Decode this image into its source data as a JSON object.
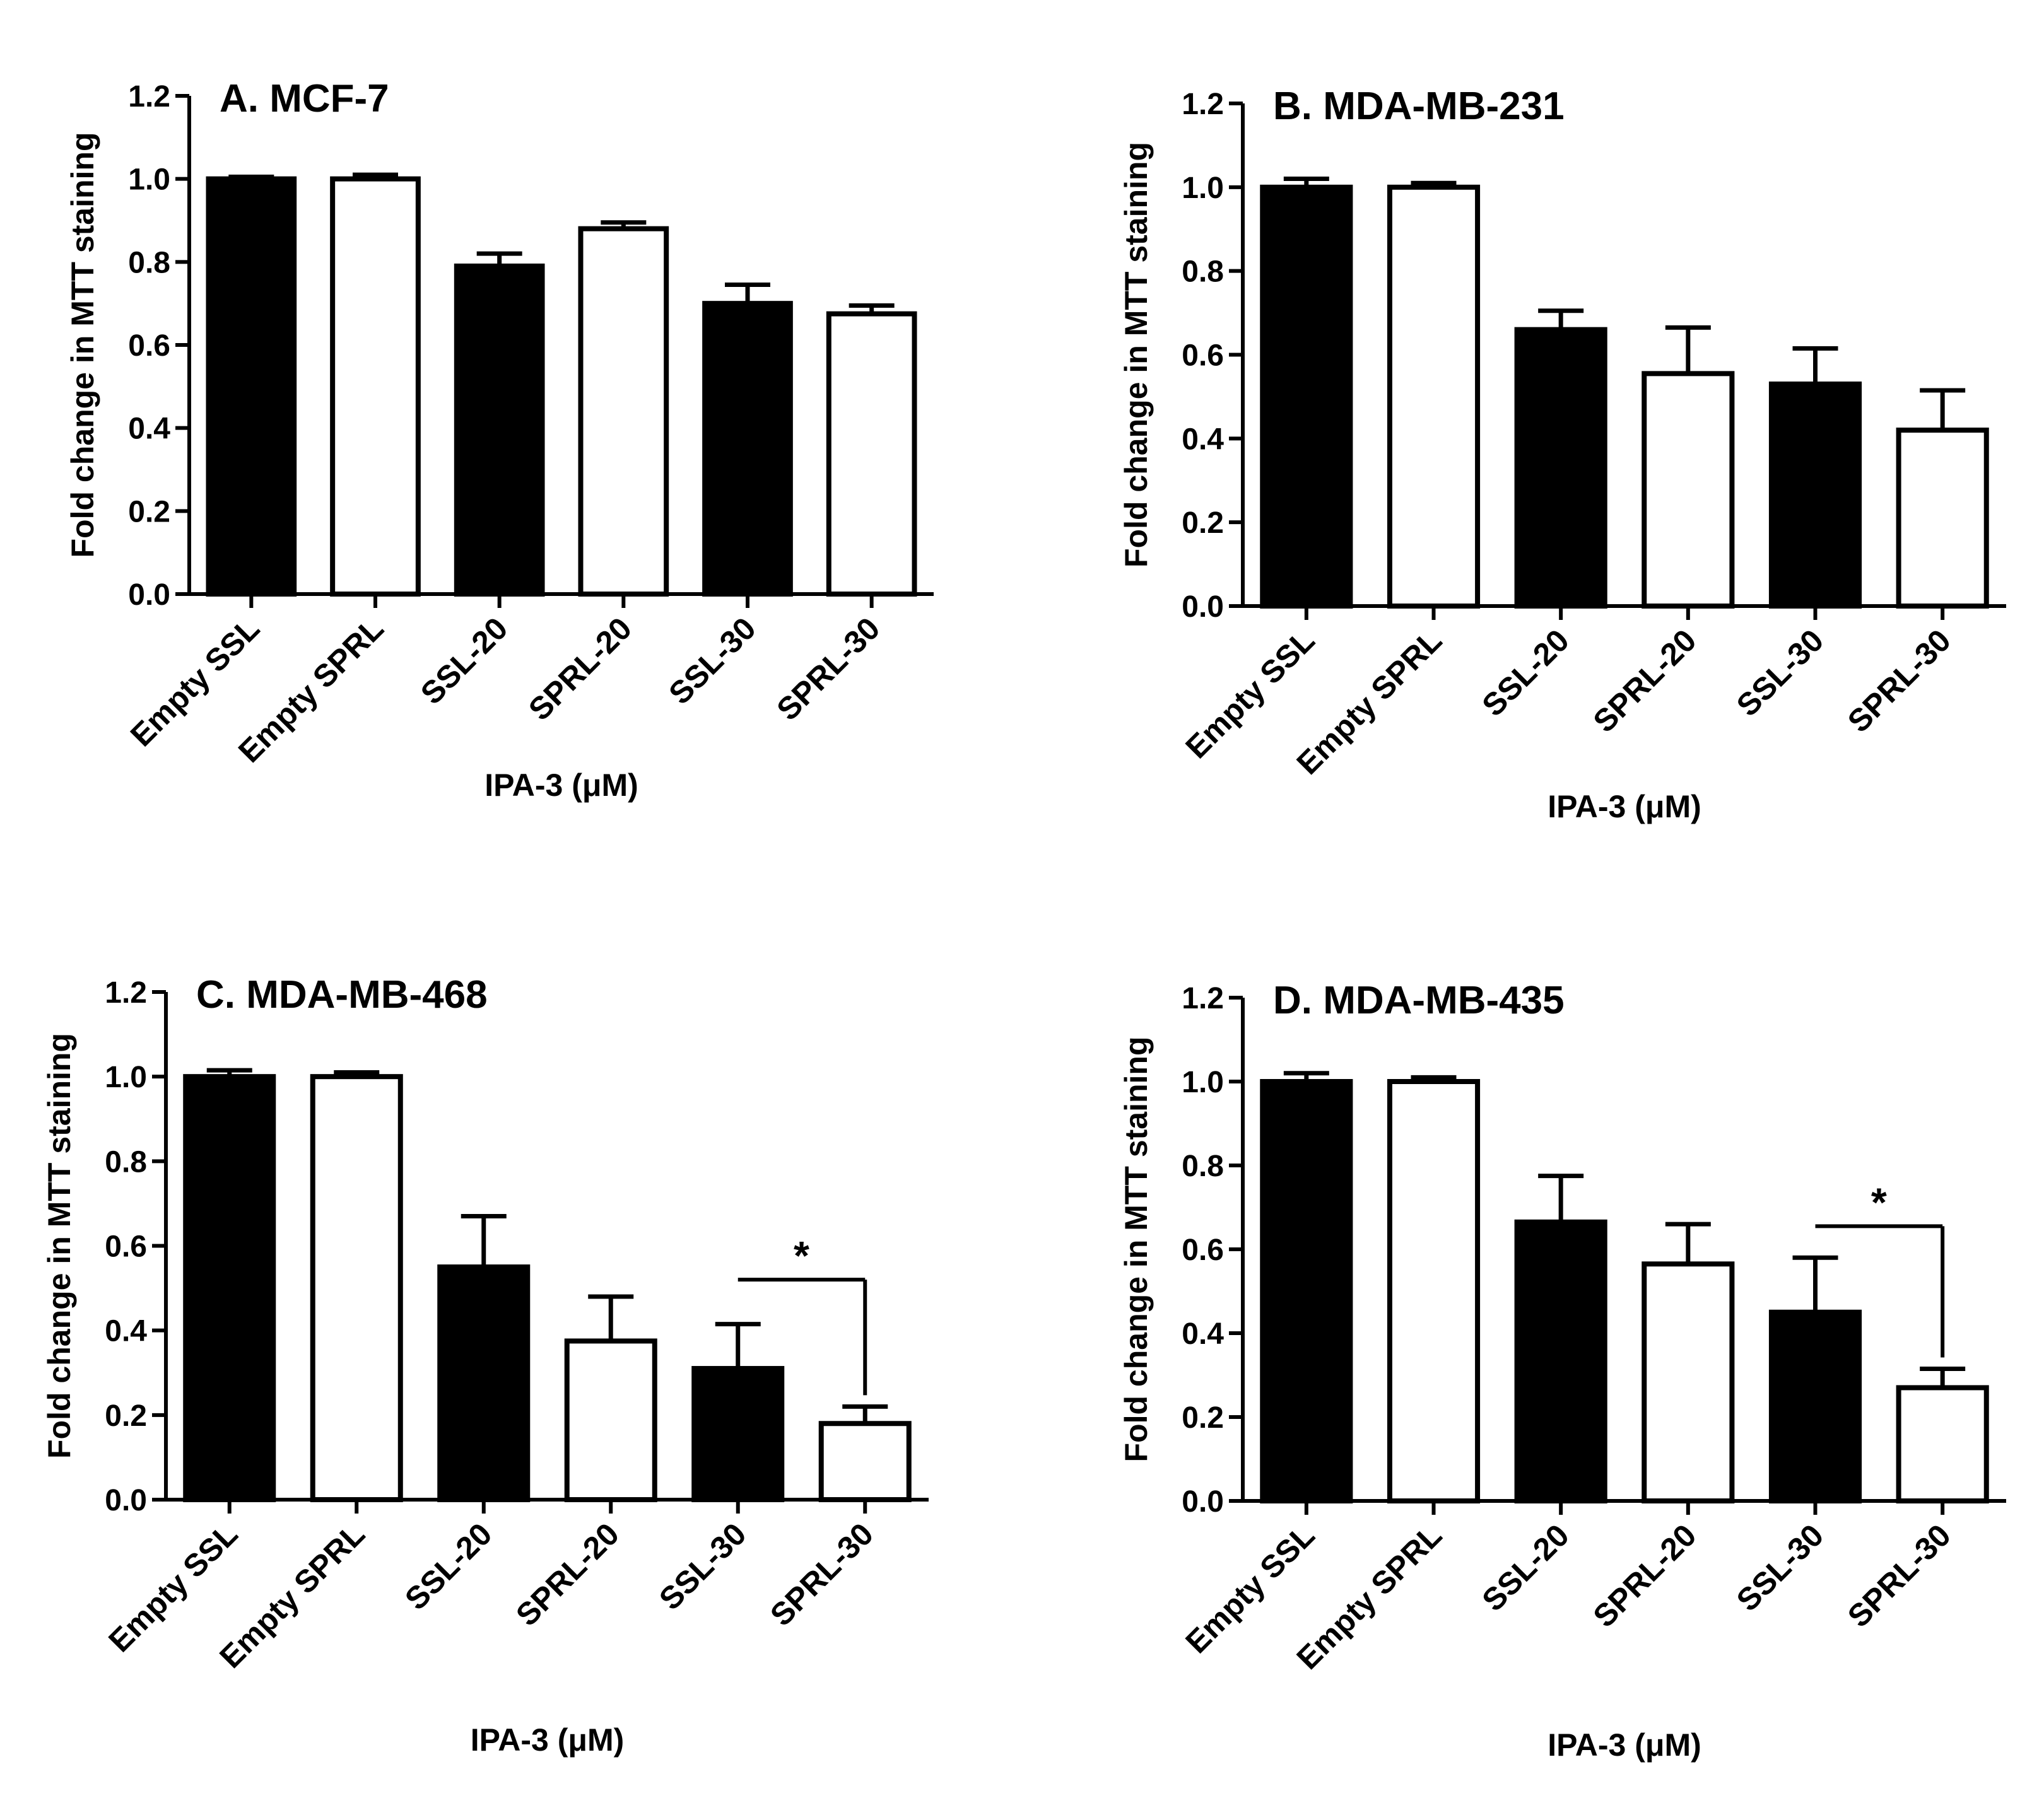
{
  "figure": {
    "colors": {
      "filled": "#000000",
      "open": "#ffffff",
      "stroke": "#000000"
    }
  },
  "chart_data": [
    {
      "type": "bar",
      "title": "A. MCF-7",
      "xlabel": "IPA-3 (μM)",
      "ylabel": "Fold change in MTT staining",
      "ylim": [
        0,
        1.2
      ],
      "yticks": [
        "0.0",
        "0.2",
        "0.4",
        "0.6",
        "0.8",
        "1.0",
        "1.2"
      ],
      "categories": [
        "Empty SSL",
        "Empty SPRL",
        "SSL-20",
        "SPRL-20",
        "SSL-30",
        "SPRL-30"
      ],
      "fills": [
        "filled",
        "open",
        "filled",
        "open",
        "filled",
        "open"
      ],
      "values": [
        1.0,
        1.0,
        0.79,
        0.88,
        0.7,
        0.675
      ],
      "errors": [
        0.005,
        0.01,
        0.03,
        0.015,
        0.045,
        0.02
      ],
      "significance": null
    },
    {
      "type": "bar",
      "title": "B. MDA-MB-231",
      "xlabel": "IPA-3 (μM)",
      "ylabel": "Fold change in MTT staining",
      "ylim": [
        0,
        1.2
      ],
      "yticks": [
        "0.0",
        "0.2",
        "0.4",
        "0.6",
        "0.8",
        "1.0",
        "1.2"
      ],
      "categories": [
        "Empty SSL",
        "Empty SPRL",
        "SSL-20",
        "SPRL-20",
        "SSL-30",
        "SPRL-30"
      ],
      "fills": [
        "filled",
        "open",
        "filled",
        "open",
        "filled",
        "open"
      ],
      "values": [
        1.0,
        1.0,
        0.66,
        0.555,
        0.53,
        0.42
      ],
      "errors": [
        0.02,
        0.01,
        0.045,
        0.11,
        0.085,
        0.095
      ],
      "significance": null
    },
    {
      "type": "bar",
      "title": "C. MDA-MB-468",
      "xlabel": "IPA-3 (μM)",
      "ylabel": "Fold change in MTT staining",
      "ylim": [
        0,
        1.2
      ],
      "yticks": [
        "0.0",
        "0.2",
        "0.4",
        "0.6",
        "0.8",
        "1.0",
        "1.2"
      ],
      "categories": [
        "Empty SSL",
        "Empty SPRL",
        "SSL-20",
        "SPRL-20",
        "SSL-30",
        "SPRL-30"
      ],
      "fills": [
        "filled",
        "open",
        "filled",
        "open",
        "filled",
        "open"
      ],
      "values": [
        1.0,
        1.0,
        0.55,
        0.375,
        0.31,
        0.18
      ],
      "errors": [
        0.015,
        0.01,
        0.12,
        0.105,
        0.105,
        0.04
      ],
      "significance": {
        "from": 4,
        "to": 5,
        "label": "*",
        "level": 0.52
      }
    },
    {
      "type": "bar",
      "title": "D. MDA-MB-435",
      "xlabel": "IPA-3 (μM)",
      "ylabel": "Fold change in MTT staining",
      "ylim": [
        0,
        1.2
      ],
      "yticks": [
        "0.0",
        "0.2",
        "0.4",
        "0.6",
        "0.8",
        "1.0",
        "1.2"
      ],
      "categories": [
        "Empty SSL",
        "Empty SPRL",
        "SSL-20",
        "SPRL-20",
        "SSL-30",
        "SPRL-30"
      ],
      "fills": [
        "filled",
        "open",
        "filled",
        "open",
        "filled",
        "open"
      ],
      "values": [
        1.0,
        1.0,
        0.665,
        0.565,
        0.45,
        0.27
      ],
      "errors": [
        0.02,
        0.01,
        0.11,
        0.095,
        0.13,
        0.045
      ],
      "significance": {
        "from": 4,
        "to": 5,
        "label": "*",
        "level": 0.655
      }
    }
  ]
}
